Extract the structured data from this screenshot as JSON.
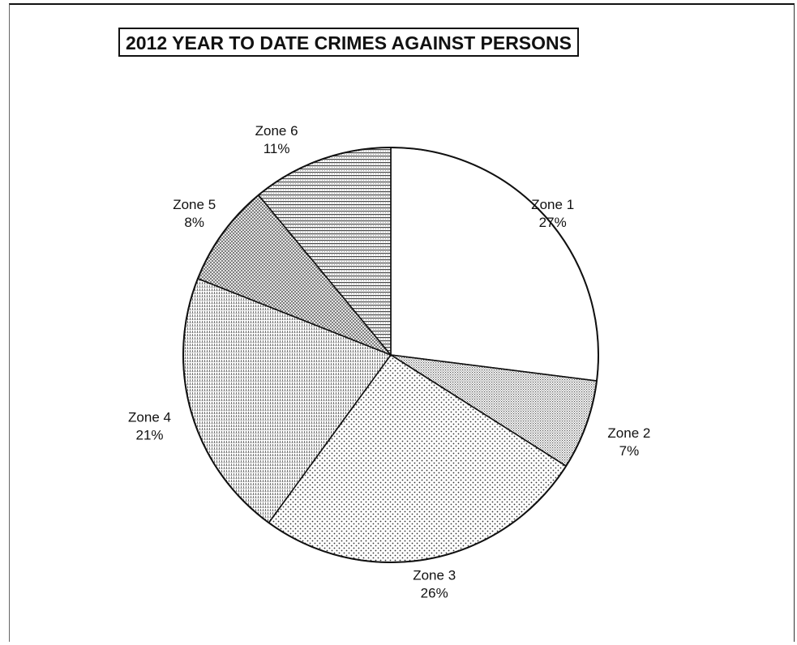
{
  "chart_data": {
    "type": "pie",
    "title": "2012 YEAR TO DATE CRIMES AGAINST PERSONS",
    "categories": [
      "Zone 1",
      "Zone 2",
      "Zone 3",
      "Zone 4",
      "Zone 5",
      "Zone 6"
    ],
    "values": [
      27,
      7,
      26,
      21,
      8,
      11
    ],
    "value_labels": [
      "27%",
      "7%",
      "26%",
      "21%",
      "8%",
      "11%"
    ],
    "slice_fills": [
      "blank",
      "fine-dots",
      "dots",
      "vertical-hatch",
      "crosshatch",
      "horizontal-hatch"
    ],
    "grid": false,
    "legend": "none"
  }
}
